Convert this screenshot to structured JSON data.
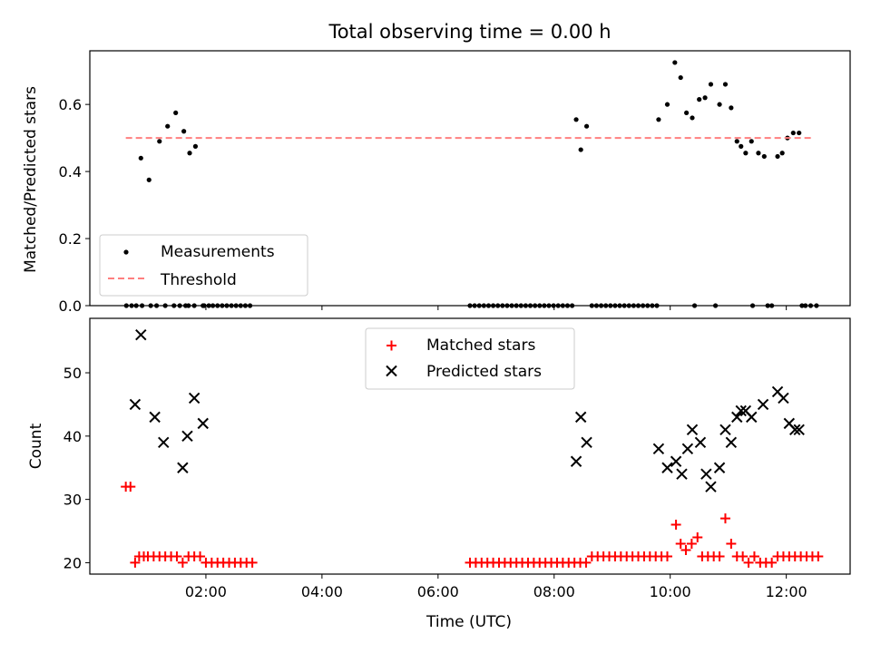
{
  "chart_data": [
    {
      "type": "scatter",
      "title": "Total observing time = 0.00 h",
      "xlabel": "",
      "ylabel": "Matched/Predicted stars",
      "ylim": [
        0,
        0.76
      ],
      "xlim": [
        0.0,
        13.1
      ],
      "yticks": [
        0.0,
        0.2,
        0.4,
        0.6
      ],
      "ytick_labels": [
        "0.0",
        "0.2",
        "0.4",
        "0.6"
      ],
      "legend_position": "lower-left",
      "series": [
        {
          "name": "Measurements",
          "marker": "dot",
          "color": "#000000",
          "x": [
            0.63,
            0.72,
            0.8,
            0.9,
            1.05,
            1.15,
            1.3,
            1.45,
            1.55,
            1.65,
            1.7,
            1.8,
            1.95,
            2.05,
            2.12,
            2.2,
            2.28,
            2.36,
            2.44,
            2.52,
            2.6,
            2.68,
            2.76,
            0.88,
            1.02,
            1.2,
            1.34,
            1.48,
            1.62,
            1.72,
            1.82,
            1.97,
            6.55,
            6.63,
            6.71,
            6.79,
            6.87,
            6.95,
            7.03,
            7.11,
            7.19,
            7.27,
            7.35,
            7.43,
            7.51,
            7.59,
            7.67,
            7.75,
            7.83,
            7.91,
            7.99,
            8.07,
            8.15,
            8.23,
            8.31,
            8.38,
            8.46,
            8.56,
            8.65,
            8.73,
            8.81,
            8.89,
            8.97,
            9.05,
            9.13,
            9.21,
            9.29,
            9.37,
            9.45,
            9.53,
            9.61,
            9.69,
            9.77,
            9.8,
            9.95,
            10.08,
            10.18,
            10.28,
            10.38,
            10.5,
            10.6,
            10.7,
            10.85,
            10.95,
            11.05,
            11.15,
            11.22,
            11.3,
            11.4,
            11.52,
            11.62,
            11.85,
            11.93,
            12.02,
            12.12,
            12.22,
            10.42,
            10.78,
            11.42,
            11.68,
            11.75,
            12.27,
            12.33,
            12.42,
            12.52
          ],
          "y": [
            0.0,
            0.0,
            0.0,
            0.0,
            0.0,
            0.0,
            0.0,
            0.0,
            0.0,
            0.0,
            0.0,
            0.0,
            0.0,
            0.0,
            0.0,
            0.0,
            0.0,
            0.0,
            0.0,
            0.0,
            0.0,
            0.0,
            0.0,
            0.44,
            0.375,
            0.49,
            0.535,
            0.575,
            0.52,
            0.455,
            0.475,
            0.0,
            0.0,
            0.0,
            0.0,
            0.0,
            0.0,
            0.0,
            0.0,
            0.0,
            0.0,
            0.0,
            0.0,
            0.0,
            0.0,
            0.0,
            0.0,
            0.0,
            0.0,
            0.0,
            0.0,
            0.0,
            0.0,
            0.0,
            0.0,
            0.555,
            0.465,
            0.535,
            0.0,
            0.0,
            0.0,
            0.0,
            0.0,
            0.0,
            0.0,
            0.0,
            0.0,
            0.0,
            0.0,
            0.0,
            0.0,
            0.0,
            0.0,
            0.555,
            0.6,
            0.725,
            0.68,
            0.575,
            0.56,
            0.615,
            0.62,
            0.66,
            0.6,
            0.66,
            0.59,
            0.49,
            0.475,
            0.455,
            0.49,
            0.455,
            0.445,
            0.445,
            0.455,
            0.5,
            0.515,
            0.515,
            0.0,
            0.0,
            0.0,
            0.0,
            0.0,
            0.0,
            0.0,
            0.0,
            0.0
          ]
        },
        {
          "name": "Threshold",
          "marker": "dashed-line",
          "color": "#ff7f7f",
          "x": [
            0.62,
            12.48
          ],
          "y": [
            0.5,
            0.5
          ]
        }
      ]
    },
    {
      "type": "scatter",
      "title": "",
      "xlabel": "Time (UTC)",
      "ylabel": "Count",
      "ylim": [
        18.2,
        58.6
      ],
      "xlim": [
        0.0,
        13.1
      ],
      "xticks": [
        2,
        4,
        6,
        8,
        10,
        12
      ],
      "xtick_labels": [
        "02:00",
        "04:00",
        "06:00",
        "08:00",
        "10:00",
        "12:00"
      ],
      "yticks": [
        20,
        30,
        40,
        50
      ],
      "ytick_labels": [
        "20",
        "30",
        "40",
        "50"
      ],
      "legend_position": "top-center",
      "series": [
        {
          "name": "Matched stars",
          "marker": "plus",
          "color": "#ff0000",
          "x": [
            0.62,
            0.7,
            0.78,
            0.85,
            0.93,
            1.0,
            1.1,
            1.2,
            1.3,
            1.4,
            1.5,
            1.6,
            1.7,
            1.8,
            1.9,
            2.0,
            2.1,
            2.2,
            2.3,
            2.4,
            2.5,
            2.6,
            2.7,
            2.8,
            6.55,
            6.65,
            6.75,
            6.85,
            6.95,
            7.05,
            7.15,
            7.25,
            7.35,
            7.45,
            7.55,
            7.65,
            7.75,
            7.85,
            7.95,
            8.05,
            8.15,
            8.25,
            8.35,
            8.45,
            8.55,
            8.65,
            8.75,
            8.85,
            8.95,
            9.05,
            9.15,
            9.25,
            9.35,
            9.45,
            9.55,
            9.65,
            9.75,
            9.85,
            9.95,
            10.1,
            10.18,
            10.27,
            10.37,
            10.47,
            10.55,
            10.65,
            10.75,
            10.85,
            10.95,
            11.05,
            11.15,
            11.25,
            11.35,
            11.45,
            11.55,
            11.65,
            11.75,
            11.85,
            11.95,
            12.05,
            12.15,
            12.25,
            12.35,
            12.45,
            12.55
          ],
          "y": [
            32,
            32,
            20,
            21,
            21,
            21,
            21,
            21,
            21,
            21,
            21,
            20,
            21,
            21,
            21,
            20,
            20,
            20,
            20,
            20,
            20,
            20,
            20,
            20,
            20,
            20,
            20,
            20,
            20,
            20,
            20,
            20,
            20,
            20,
            20,
            20,
            20,
            20,
            20,
            20,
            20,
            20,
            20,
            20,
            20,
            21,
            21,
            21,
            21,
            21,
            21,
            21,
            21,
            21,
            21,
            21,
            21,
            21,
            21,
            26,
            23,
            22,
            23,
            24,
            21,
            21,
            21,
            21,
            27,
            23,
            21,
            21,
            20,
            21,
            20,
            20,
            20,
            21,
            21,
            21,
            21,
            21,
            21,
            21,
            21
          ]
        },
        {
          "name": "Predicted stars",
          "marker": "x",
          "color": "#000000",
          "x": [
            0.78,
            0.88,
            1.12,
            1.27,
            1.6,
            1.68,
            1.8,
            1.95,
            8.38,
            8.46,
            8.56,
            9.8,
            9.95,
            10.1,
            10.2,
            10.3,
            10.38,
            10.52,
            10.62,
            10.7,
            10.85,
            10.95,
            11.05,
            11.15,
            11.22,
            11.3,
            11.4,
            11.6,
            11.85,
            11.95,
            12.05,
            12.15,
            12.22
          ],
          "y": [
            45,
            56,
            43,
            39,
            35,
            40,
            46,
            42,
            36,
            43,
            39,
            38,
            35,
            36,
            34,
            38,
            41,
            39,
            34,
            32,
            35,
            41,
            39,
            43,
            44,
            44,
            43,
            45,
            47,
            46,
            42,
            41,
            41
          ]
        }
      ]
    }
  ]
}
